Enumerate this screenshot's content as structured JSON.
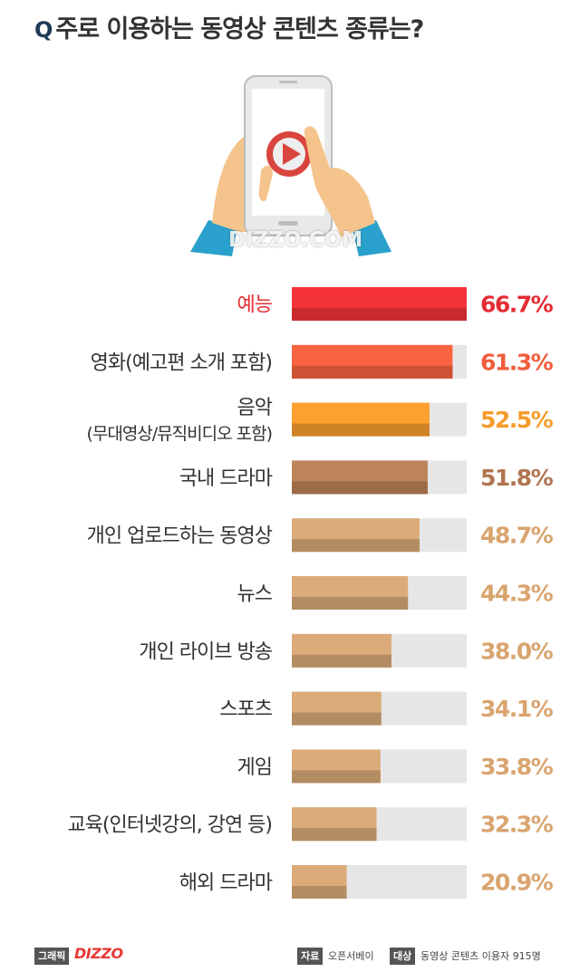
{
  "header": {
    "q_mark": "Q",
    "title": "주로 이용하는 동영상 콘텐츠 종류는?"
  },
  "watermark": "DIZZO.COM",
  "chart_data": {
    "type": "bar",
    "orientation": "horizontal",
    "unit": "%",
    "xlim": [
      0,
      100
    ],
    "categories": [
      [
        "예능"
      ],
      [
        "영화(예고편 소개 포함)"
      ],
      [
        "음악",
        "(무대영상/뮤직비디오 포함)"
      ],
      [
        "국내 드라마"
      ],
      [
        "개인 업로드하는 동영상"
      ],
      [
        "뉴스"
      ],
      [
        "개인 라이브 방송"
      ],
      [
        "스포츠"
      ],
      [
        "게임"
      ],
      [
        "교육(인터넷강의, 강연 등)"
      ],
      [
        "해외 드라마"
      ]
    ],
    "values": [
      66.7,
      61.3,
      52.5,
      51.8,
      48.7,
      44.3,
      38.0,
      34.1,
      33.8,
      32.3,
      20.9
    ],
    "value_labels": [
      "66.7%",
      "61.3%",
      "52.5%",
      "51.8%",
      "48.7%",
      "44.3%",
      "38.0%",
      "34.1%",
      "33.8%",
      "32.3%",
      "20.9%"
    ],
    "colors": [
      "#f5333a",
      "#fa6440",
      "#fda030",
      "#be8459",
      "#dcab7a",
      "#dcab7a",
      "#dcab7a",
      "#dcab7a",
      "#dcab7a",
      "#dcab7a",
      "#dcab7a"
    ],
    "label_colors": [
      "#e42d33",
      "#333333",
      "#333333",
      "#333333",
      "#333333",
      "#333333",
      "#333333",
      "#333333",
      "#333333",
      "#333333",
      "#333333"
    ],
    "value_colors": [
      "#e42d33",
      "#f05c3b",
      "#f59c2b",
      "#b17650",
      "#d9a46f",
      "#d9a46f",
      "#d9a46f",
      "#d9a46f",
      "#d9a46f",
      "#d9a46f",
      "#d9a46f"
    ],
    "track_color": "#e6e6e6"
  },
  "footer": {
    "badge_graphic": "그래픽",
    "brand": "DIZZO",
    "source_badge": "자료",
    "source": "오픈서베이",
    "target_badge": "대상",
    "target": "동영상 콘텐츠 이용자 915명"
  }
}
